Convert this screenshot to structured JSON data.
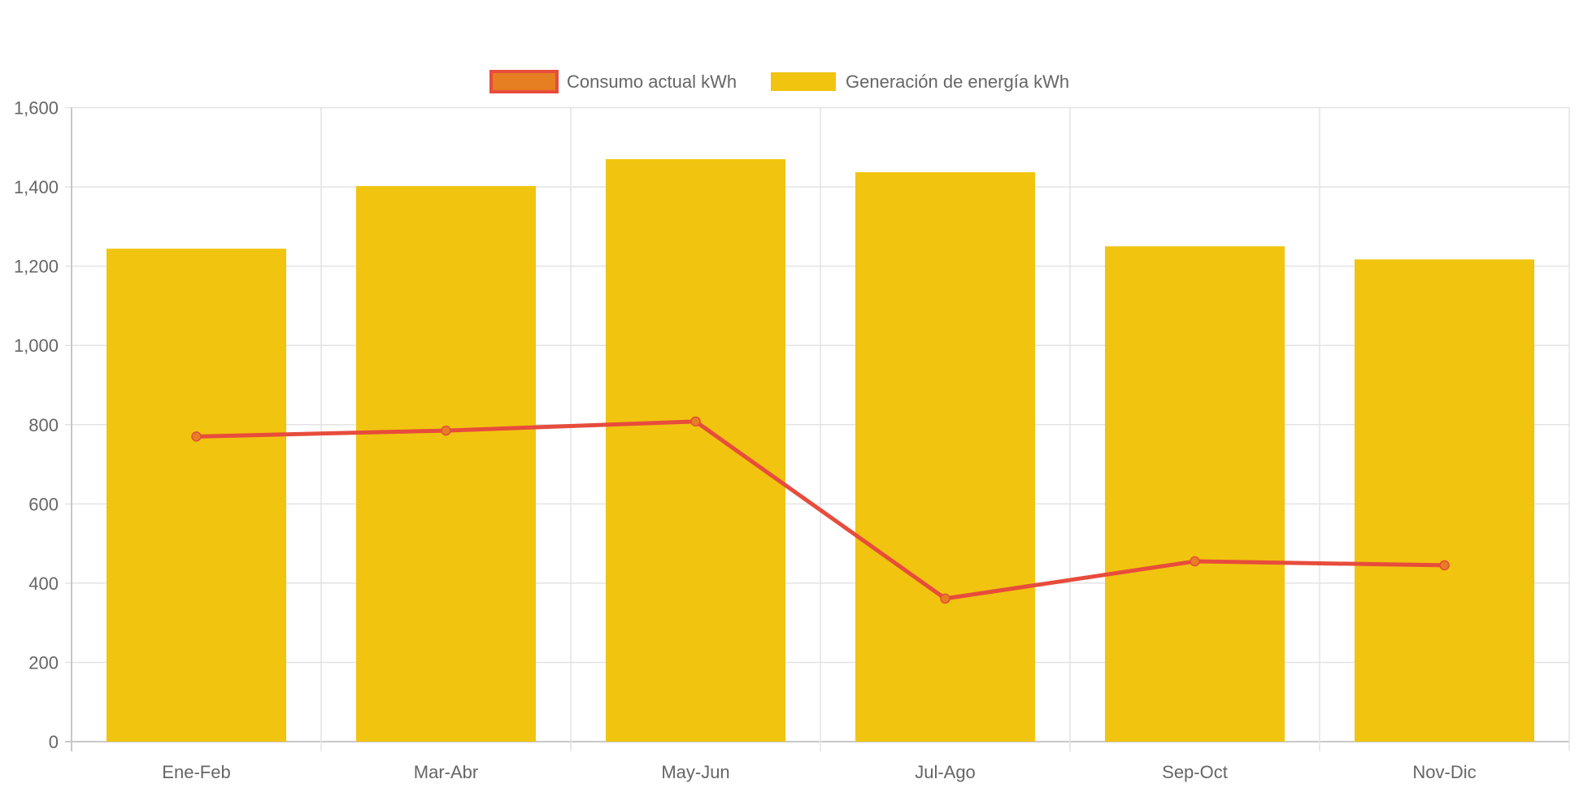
{
  "chart_data": {
    "type": "bar",
    "title": "",
    "xlabel": "",
    "ylabel": "",
    "categories": [
      "Ene-Feb",
      "Mar-Abr",
      "May-Jun",
      "Jul-Ago",
      "Sep-Oct",
      "Nov-Dic"
    ],
    "ylim": [
      0,
      1600
    ],
    "yticks": [
      0,
      200,
      400,
      600,
      800,
      1000,
      1200,
      1400,
      1600
    ],
    "ytick_labels": [
      "0",
      "200",
      "400",
      "600",
      "800",
      "1,000",
      "1,200",
      "1,400",
      "1,600"
    ],
    "grid": true,
    "legend_position": "top",
    "series": [
      {
        "name": "Consumo actual kWh",
        "type": "line",
        "values": [
          770,
          785,
          808,
          361,
          455,
          445
        ],
        "color": "#E74C3C",
        "point_color": "#E67E22"
      },
      {
        "name": "Generación de energía kWh",
        "type": "bar",
        "values": [
          1244,
          1402,
          1470,
          1437,
          1250,
          1217
        ],
        "color": "#F1C40F"
      }
    ]
  }
}
